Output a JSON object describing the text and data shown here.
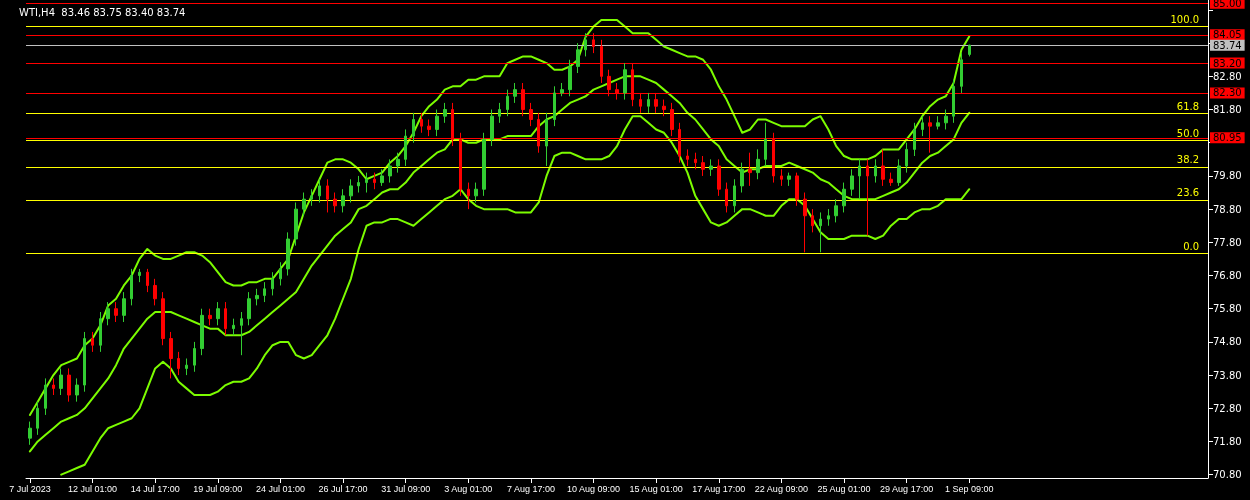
{
  "chart_data": {
    "type": "candlestick",
    "title": "WTI,H4  83.46 83.75 83.40 83.74",
    "categories": [
      "7 Jul 2023",
      null,
      null,
      null,
      null,
      null,
      null,
      null,
      "12 Jul 01:00",
      null,
      null,
      null,
      null,
      null,
      null,
      null,
      "14 Jul 17:00",
      null,
      null,
      null,
      null,
      null,
      null,
      null,
      "19 Jul 09:00",
      null,
      null,
      null,
      null,
      null,
      null,
      null,
      "24 Jul 01:00",
      null,
      null,
      null,
      null,
      null,
      null,
      null,
      "26 Jul 17:00",
      null,
      null,
      null,
      null,
      null,
      null,
      null,
      "31 Jul 09:00",
      null,
      null,
      null,
      null,
      null,
      null,
      null,
      "3 Aug 01:00",
      null,
      null,
      null,
      null,
      null,
      null,
      null,
      "7 Aug 17:00",
      null,
      null,
      null,
      null,
      null,
      null,
      null,
      "10 Aug 09:00",
      null,
      null,
      null,
      null,
      null,
      null,
      null,
      "15 Aug 01:00",
      null,
      null,
      null,
      null,
      null,
      null,
      null,
      "17 Aug 17:00",
      null,
      null,
      null,
      null,
      null,
      null,
      null,
      "22 Aug 09:00",
      null,
      null,
      null,
      null,
      null,
      null,
      null,
      "25 Aug 01:00",
      null,
      null,
      null,
      null,
      null,
      null,
      null,
      "29 Aug 17:00",
      null,
      null,
      null,
      null,
      null,
      null,
      null,
      "1 Sep 09:00",
      null,
      null,
      null,
      null,
      null,
      null,
      null,
      null,
      null,
      null,
      null,
      null,
      null,
      null,
      null,
      null,
      null,
      null,
      null,
      null,
      null,
      null,
      null,
      null,
      null,
      null,
      null,
      null,
      null,
      null
    ],
    "ohlc": [
      [
        71.9,
        72.4,
        71.7,
        72.2
      ],
      [
        72.2,
        73.0,
        72.0,
        72.8
      ],
      [
        72.8,
        73.7,
        72.6,
        73.5
      ],
      [
        73.5,
        73.7,
        73.2,
        73.4
      ],
      [
        73.4,
        74.0,
        73.2,
        73.8
      ],
      [
        73.8,
        74.0,
        73.0,
        73.2
      ],
      [
        73.2,
        73.7,
        73.0,
        73.5
      ],
      [
        73.5,
        75.1,
        73.3,
        74.9
      ],
      [
        74.9,
        75.1,
        74.5,
        74.7
      ],
      [
        74.7,
        75.7,
        74.5,
        75.5
      ],
      [
        75.5,
        76.0,
        75.3,
        75.8
      ],
      [
        75.8,
        76.0,
        75.4,
        75.6
      ],
      [
        75.6,
        76.3,
        75.4,
        76.1
      ],
      [
        76.1,
        77.0,
        75.9,
        76.8
      ],
      [
        76.8,
        77.0,
        76.6,
        76.9
      ],
      [
        76.9,
        77.0,
        76.3,
        76.5
      ],
      [
        76.5,
        76.7,
        75.9,
        76.1
      ],
      [
        76.1,
        76.3,
        74.7,
        74.9
      ],
      [
        74.9,
        75.1,
        73.7,
        74.3
      ],
      [
        74.3,
        74.5,
        73.8,
        74.0
      ],
      [
        74.0,
        74.3,
        73.8,
        74.1
      ],
      [
        74.1,
        74.8,
        73.9,
        74.6
      ],
      [
        74.6,
        75.8,
        74.4,
        75.6
      ],
      [
        75.6,
        75.8,
        75.3,
        75.5
      ],
      [
        75.5,
        76.0,
        75.3,
        75.8
      ],
      [
        75.8,
        76.0,
        75.0,
        75.2
      ],
      [
        75.2,
        75.5,
        75.0,
        75.3
      ],
      [
        75.3,
        75.7,
        74.4,
        75.5
      ],
      [
        75.5,
        76.3,
        75.3,
        76.1
      ],
      [
        76.1,
        76.4,
        75.9,
        76.2
      ],
      [
        76.2,
        76.6,
        76.0,
        76.4
      ],
      [
        76.4,
        76.9,
        76.2,
        76.7
      ],
      [
        76.7,
        77.2,
        76.5,
        77.0
      ],
      [
        77.0,
        78.1,
        76.8,
        77.9
      ],
      [
        77.9,
        79.0,
        77.7,
        78.8
      ],
      [
        78.8,
        79.3,
        78.6,
        79.1
      ],
      [
        79.1,
        79.4,
        78.9,
        79.2
      ],
      [
        79.2,
        79.7,
        79.0,
        79.5
      ],
      [
        79.5,
        79.7,
        78.7,
        79.1
      ],
      [
        79.1,
        79.3,
        78.7,
        78.9
      ],
      [
        78.9,
        79.4,
        78.7,
        79.2
      ],
      [
        79.2,
        79.7,
        79.0,
        79.5
      ],
      [
        79.5,
        79.8,
        79.3,
        79.6
      ],
      [
        79.6,
        79.9,
        79.3,
        79.7
      ],
      [
        79.7,
        79.9,
        79.4,
        79.6
      ],
      [
        79.6,
        80.0,
        79.5,
        79.8
      ],
      [
        79.8,
        80.3,
        79.6,
        80.1
      ],
      [
        80.1,
        80.5,
        79.9,
        80.3
      ],
      [
        80.3,
        81.2,
        80.1,
        81.0
      ],
      [
        81.0,
        81.7,
        80.8,
        81.5
      ],
      [
        81.5,
        81.7,
        81.1,
        81.3
      ],
      [
        81.3,
        81.5,
        81.0,
        81.2
      ],
      [
        81.2,
        81.8,
        81.0,
        81.6
      ],
      [
        81.6,
        82.0,
        81.4,
        81.8
      ],
      [
        81.8,
        82.0,
        80.7,
        80.9
      ],
      [
        80.9,
        81.1,
        79.2,
        79.4
      ],
      [
        79.4,
        79.6,
        78.8,
        79.2
      ],
      [
        79.2,
        79.6,
        79.0,
        79.4
      ],
      [
        79.4,
        81.1,
        79.2,
        80.9
      ],
      [
        80.9,
        81.8,
        80.7,
        81.6
      ],
      [
        81.6,
        82.0,
        81.4,
        81.8
      ],
      [
        81.8,
        82.4,
        81.6,
        82.2
      ],
      [
        82.2,
        82.6,
        82.0,
        82.4
      ],
      [
        82.4,
        82.6,
        81.6,
        81.8
      ],
      [
        81.8,
        82.0,
        81.3,
        81.5
      ],
      [
        81.5,
        81.7,
        80.5,
        80.7
      ],
      [
        80.7,
        81.7,
        80.1,
        81.5
      ],
      [
        81.5,
        82.5,
        81.3,
        82.3
      ],
      [
        82.3,
        82.6,
        82.2,
        82.4
      ],
      [
        82.4,
        83.3,
        82.2,
        83.1
      ],
      [
        83.1,
        83.8,
        82.9,
        83.6
      ],
      [
        83.6,
        84.1,
        83.4,
        83.9
      ],
      [
        83.9,
        84.1,
        83.5,
        83.7
      ],
      [
        83.7,
        83.9,
        82.6,
        82.8
      ],
      [
        82.8,
        83.0,
        82.2,
        82.4
      ],
      [
        82.4,
        82.6,
        82.1,
        82.3
      ],
      [
        82.3,
        83.2,
        82.1,
        83.0
      ],
      [
        83.0,
        83.2,
        81.9,
        82.1
      ],
      [
        82.1,
        82.3,
        81.7,
        81.9
      ],
      [
        81.9,
        82.3,
        81.7,
        82.1
      ],
      [
        82.1,
        82.3,
        81.7,
        81.9
      ],
      [
        81.9,
        82.1,
        81.6,
        81.8
      ],
      [
        81.8,
        82.0,
        81.0,
        81.2
      ],
      [
        81.2,
        81.4,
        80.2,
        80.4
      ],
      [
        80.4,
        80.6,
        80.1,
        80.3
      ],
      [
        80.3,
        80.5,
        80.0,
        80.2
      ],
      [
        80.2,
        80.4,
        79.8,
        80.0
      ],
      [
        80.0,
        80.3,
        79.8,
        80.1
      ],
      [
        80.1,
        80.3,
        79.2,
        79.4
      ],
      [
        79.4,
        79.6,
        78.7,
        78.9
      ],
      [
        78.9,
        79.7,
        78.7,
        79.5
      ],
      [
        79.5,
        80.2,
        79.3,
        80.0
      ],
      [
        80.0,
        80.5,
        79.5,
        79.9
      ],
      [
        79.9,
        80.6,
        79.7,
        80.3
      ],
      [
        80.3,
        81.4,
        80.1,
        80.9
      ],
      [
        80.9,
        81.1,
        79.6,
        79.8
      ],
      [
        79.8,
        80.0,
        79.5,
        79.7
      ],
      [
        79.7,
        79.9,
        79.5,
        79.8
      ],
      [
        79.8,
        79.9,
        78.9,
        79.1
      ],
      [
        79.1,
        79.3,
        77.5,
        78.6
      ],
      [
        78.6,
        78.8,
        78.1,
        78.3
      ],
      [
        78.3,
        78.7,
        77.5,
        78.5
      ],
      [
        78.5,
        78.8,
        78.3,
        78.6
      ],
      [
        78.6,
        79.1,
        78.4,
        78.9
      ],
      [
        78.9,
        79.6,
        78.7,
        79.4
      ],
      [
        79.4,
        80.0,
        79.2,
        79.8
      ],
      [
        79.8,
        80.3,
        79.1,
        80.1
      ],
      [
        80.1,
        80.3,
        78.0,
        79.8
      ],
      [
        79.8,
        80.3,
        79.6,
        80.1
      ],
      [
        80.1,
        80.6,
        79.5,
        79.7
      ],
      [
        79.7,
        79.9,
        79.5,
        79.6
      ],
      [
        79.6,
        80.3,
        79.5,
        80.1
      ],
      [
        80.1,
        80.8,
        79.9,
        80.6
      ],
      [
        80.6,
        81.4,
        80.4,
        81.2
      ],
      [
        81.2,
        81.6,
        81.0,
        81.4
      ],
      [
        81.4,
        81.6,
        80.5,
        81.3
      ],
      [
        81.3,
        81.6,
        81.2,
        81.4
      ],
      [
        81.4,
        81.8,
        81.2,
        81.6
      ],
      [
        81.6,
        82.7,
        81.4,
        82.5
      ],
      [
        82.5,
        83.5,
        82.3,
        83.3
      ],
      [
        83.46,
        83.75,
        83.4,
        83.74
      ],
      null,
      null,
      null,
      null,
      null,
      null,
      null,
      null,
      null,
      null,
      null,
      null,
      null,
      null,
      null,
      null,
      null,
      null,
      null,
      null,
      null,
      null,
      null,
      null,
      null,
      null,
      null,
      null,
      null,
      null
    ],
    "colors": [
      "#32cd32",
      "#32cd32",
      "#32cd32",
      "#ff0000",
      "#32cd32",
      "#ff0000",
      "#32cd32",
      "#32cd32",
      "#ff0000",
      "#32cd32",
      "#32cd32",
      "#ff0000",
      "#32cd32",
      "#32cd32",
      "#32cd32",
      "#ff0000",
      "#ff0000",
      "#ff0000",
      "#ff0000",
      "#ff0000",
      "#32cd32",
      "#32cd32",
      "#32cd32",
      "#ff0000",
      "#32cd32",
      "#ff0000",
      "#32cd32",
      "#32cd32",
      "#32cd32",
      "#32cd32",
      "#32cd32",
      "#32cd32",
      "#32cd32",
      "#32cd32",
      "#32cd32",
      "#32cd32",
      "#32cd32",
      "#32cd32",
      "#ff0000",
      "#ff0000",
      "#32cd32",
      "#32cd32",
      "#32cd32",
      "#32cd32",
      "#ff0000",
      "#32cd32",
      "#32cd32",
      "#32cd32",
      "#32cd32",
      "#32cd32",
      "#ff0000",
      "#ff0000",
      "#32cd32",
      "#32cd32",
      "#ff0000",
      "#ff0000",
      "#ff0000",
      "#32cd32",
      "#32cd32",
      "#32cd32",
      "#32cd32",
      "#32cd32",
      "#32cd32",
      "#ff0000",
      "#ff0000",
      "#ff0000",
      "#32cd32",
      "#32cd32",
      "#32cd32",
      "#32cd32",
      "#32cd32",
      "#32cd32",
      "#ff0000",
      "#ff0000",
      "#ff0000",
      "#ff0000",
      "#32cd32",
      "#ff0000",
      "#ff0000",
      "#32cd32",
      "#ff0000",
      "#ff0000",
      "#ff0000",
      "#ff0000",
      "#ff0000",
      "#ff0000",
      "#ff0000",
      "#32cd32",
      "#ff0000",
      "#ff0000",
      "#32cd32",
      "#32cd32",
      "#ff0000",
      "#32cd32",
      "#32cd32",
      "#ff0000",
      "#ff0000",
      "#32cd32",
      "#ff0000",
      "#ff0000",
      "#ff0000",
      "#32cd32",
      "#32cd32",
      "#32cd32",
      "#32cd32",
      "#32cd32",
      "#32cd32",
      "#ff0000",
      "#32cd32",
      "#ff0000",
      "#ff0000",
      "#32cd32",
      "#32cd32",
      "#32cd32",
      "#32cd32",
      "#ff0000",
      "#32cd32",
      "#32cd32",
      "#32cd32",
      "#32cd32",
      "#32cd32",
      null,
      null,
      null,
      null,
      null,
      null,
      null,
      null,
      null,
      null,
      null,
      null,
      null,
      null,
      null,
      null,
      null,
      null,
      null,
      null,
      null,
      null,
      null,
      null,
      null,
      null,
      null,
      null,
      null,
      null
    ],
    "series": [
      {
        "type": "line",
        "color": "#7cfc00",
        "values": [
          72.6,
          73.0,
          73.4,
          73.8,
          74.1,
          74.2,
          74.3,
          74.7,
          74.9,
          75.3,
          75.9,
          76.1,
          76.5,
          76.8,
          77.3,
          77.6,
          77.4,
          77.3,
          77.3,
          77.4,
          77.5,
          77.5,
          77.4,
          77.2,
          76.9,
          76.6,
          76.5,
          76.5,
          76.6,
          76.6,
          76.7,
          76.7,
          77.0,
          77.3,
          78.0,
          78.7,
          79.2,
          79.7,
          80.2,
          80.3,
          80.3,
          80.2,
          80.0,
          79.7,
          79.8,
          79.9,
          80.2,
          80.4,
          80.7,
          81.1,
          81.6,
          81.9,
          82.1,
          82.4,
          82.5,
          82.5,
          82.7,
          82.7,
          82.8,
          82.8,
          82.8,
          83.2,
          83.3,
          83.4,
          83.4,
          83.3,
          83.2,
          83.0,
          83.0,
          83.1,
          83.3,
          84.0,
          84.3,
          84.5,
          84.5,
          84.5,
          84.3,
          84.1,
          84.1,
          84.1,
          83.9,
          83.7,
          83.6,
          83.5,
          83.4,
          83.4,
          83.3,
          83.0,
          82.5,
          82.1,
          81.6,
          81.1,
          81.2,
          81.5,
          81.5,
          81.4,
          81.3,
          81.3,
          81.3,
          81.3,
          81.5,
          81.6,
          81.2,
          80.7,
          80.4,
          80.3,
          80.3,
          80.3,
          80.4,
          80.6,
          80.6,
          80.6,
          80.9,
          81.2,
          81.6,
          81.9,
          82.1,
          82.2,
          82.6,
          83.6,
          84.0,
          null,
          null,
          null,
          null,
          null,
          null,
          null,
          null,
          null,
          null,
          null,
          null,
          null,
          null,
          null,
          null,
          null,
          null,
          null,
          null,
          null,
          null,
          null,
          null,
          null,
          null,
          null,
          null,
          null,
          null
        ]
      },
      {
        "type": "line",
        "color": "#7cfc00",
        "values": [
          71.5,
          71.8,
          72.0,
          72.2,
          72.4,
          72.5,
          72.6,
          72.8,
          73.1,
          73.4,
          73.7,
          74.1,
          74.6,
          74.9,
          75.2,
          75.5,
          75.7,
          75.7,
          75.7,
          75.6,
          75.5,
          75.4,
          75.3,
          75.2,
          75.2,
          75.0,
          75.0,
          75.0,
          75.1,
          75.3,
          75.5,
          75.7,
          75.9,
          76.1,
          76.3,
          76.7,
          77.1,
          77.4,
          77.7,
          78.0,
          78.2,
          78.4,
          78.8,
          78.9,
          79.1,
          79.3,
          79.4,
          79.4,
          79.6,
          79.9,
          80.1,
          80.3,
          80.5,
          80.6,
          80.9,
          80.9,
          80.8,
          80.8,
          80.9,
          80.9,
          80.9,
          81.0,
          81.0,
          81.0,
          81.0,
          81.3,
          81.5,
          81.6,
          81.8,
          82.0,
          82.1,
          82.2,
          82.4,
          82.5,
          82.6,
          82.7,
          82.8,
          82.8,
          82.8,
          82.7,
          82.6,
          82.4,
          82.2,
          82.0,
          81.7,
          81.5,
          81.2,
          80.9,
          80.7,
          80.3,
          80.1,
          79.9,
          80.0,
          80.0,
          80.1,
          80.1,
          80.1,
          80.2,
          80.1,
          80.0,
          79.9,
          79.7,
          79.6,
          79.4,
          79.2,
          79.1,
          79.1,
          79.1,
          79.1,
          79.2,
          79.3,
          79.4,
          79.6,
          79.9,
          80.2,
          80.4,
          80.5,
          80.7,
          80.9,
          81.4,
          81.7,
          null,
          null,
          null,
          null,
          null,
          null,
          null,
          null,
          null,
          null,
          null,
          null,
          null,
          null,
          null,
          null,
          null,
          null,
          null,
          null,
          null,
          null,
          null,
          null,
          null,
          null,
          null,
          null,
          null,
          null
        ]
      },
      {
        "type": "line",
        "color": "#7cfc00",
        "values": [
          null,
          null,
          null,
          null,
          70.8,
          70.9,
          71.0,
          71.1,
          71.5,
          71.9,
          72.2,
          72.3,
          72.4,
          72.5,
          72.8,
          73.4,
          74.0,
          74.2,
          74.0,
          73.6,
          73.4,
          73.2,
          73.2,
          73.2,
          73.3,
          73.5,
          73.6,
          73.6,
          73.7,
          74.0,
          74.4,
          74.7,
          74.8,
          74.8,
          74.4,
          74.3,
          74.4,
          74.7,
          75.0,
          75.5,
          76.1,
          76.7,
          77.6,
          78.3,
          78.4,
          78.4,
          78.5,
          78.5,
          78.4,
          78.3,
          78.5,
          78.7,
          78.9,
          79.1,
          79.2,
          79.4,
          79.1,
          78.9,
          78.8,
          78.8,
          78.8,
          78.8,
          78.7,
          78.7,
          78.7,
          79.0,
          79.8,
          80.4,
          80.5,
          80.5,
          80.4,
          80.3,
          80.3,
          80.3,
          80.4,
          80.7,
          81.2,
          81.6,
          81.6,
          81.4,
          81.2,
          81.1,
          80.8,
          80.4,
          79.9,
          79.2,
          78.8,
          78.4,
          78.3,
          78.4,
          78.6,
          78.8,
          78.8,
          78.7,
          78.6,
          78.6,
          78.9,
          79.1,
          79.1,
          78.9,
          78.5,
          78.1,
          77.9,
          77.9,
          77.9,
          78.0,
          78.0,
          78.0,
          77.9,
          78.0,
          78.3,
          78.5,
          78.5,
          78.7,
          78.8,
          78.8,
          78.9,
          79.1,
          79.1,
          79.1,
          79.4,
          null,
          null,
          null,
          null,
          null,
          null,
          null,
          null,
          null,
          null,
          null,
          null,
          null,
          null,
          null,
          null,
          null,
          null,
          null,
          null,
          null,
          null,
          null,
          null,
          null,
          null,
          null,
          null,
          null,
          null
        ]
      }
    ],
    "ylim": [
      70.7,
      85.1
    ],
    "yticks": [
      {
        "value": 70.8,
        "label": "70.80"
      },
      {
        "value": 71.8,
        "label": "71.80"
      },
      {
        "value": 72.8,
        "label": "72.80"
      },
      {
        "value": 73.8,
        "label": "73.80"
      },
      {
        "value": 74.8,
        "label": "74.80"
      },
      {
        "value": 75.8,
        "label": "75.80"
      },
      {
        "value": 76.8,
        "label": "76.80"
      },
      {
        "value": 77.8,
        "label": "77.80"
      },
      {
        "value": 78.8,
        "label": "78.80"
      },
      {
        "value": 79.8,
        "label": "79.80"
      },
      {
        "value": 80.8,
        "label": null
      },
      {
        "value": 81.8,
        "label": "81.80"
      },
      {
        "value": 82.8,
        "label": "82.80"
      },
      {
        "value": 83.8,
        "label": null
      },
      {
        "value": 84.8,
        "label": null
      }
    ],
    "ref_lines": [
      {
        "axis": "y",
        "value": 85.0,
        "label": "85.00",
        "color": "#ff0000"
      },
      {
        "axis": "y",
        "value": 84.05,
        "label": "84.05",
        "color": "#ff0000"
      },
      {
        "axis": "y",
        "value": 83.74,
        "label": "83.74",
        "color": "#c0c0c0"
      },
      {
        "axis": "y",
        "value": 83.2,
        "label": "83.20",
        "color": "#ff0000"
      },
      {
        "axis": "y",
        "value": 82.3,
        "label": "82.30",
        "color": "#ff0000"
      },
      {
        "axis": "y",
        "value": 80.95,
        "label": "80.95",
        "color": "#ff0000"
      },
      {
        "axis": "y",
        "value": 84.3,
        "color": "#ffff00"
      },
      {
        "axis": "y",
        "value": 81.69,
        "color": "#ffff00"
      },
      {
        "axis": "y",
        "value": 80.88,
        "color": "#ffff00"
      },
      {
        "axis": "y",
        "value": 80.07,
        "color": "#ffff00"
      },
      {
        "axis": "y",
        "value": 79.08,
        "color": "#ffff00"
      },
      {
        "axis": "y",
        "value": 77.46,
        "color": "#ffff00"
      }
    ],
    "annotations": [
      {
        "text": "100.0",
        "y": 84.3
      },
      {
        "text": "61.8",
        "y": 81.69
      },
      {
        "text": "50.0",
        "y": 80.88
      },
      {
        "text": "38.2",
        "y": 80.07
      },
      {
        "text": "23.6",
        "y": 79.08
      },
      {
        "text": "0.0",
        "y": 77.46
      }
    ],
    "grid": false,
    "marker": "none",
    "line_style": "solid"
  }
}
